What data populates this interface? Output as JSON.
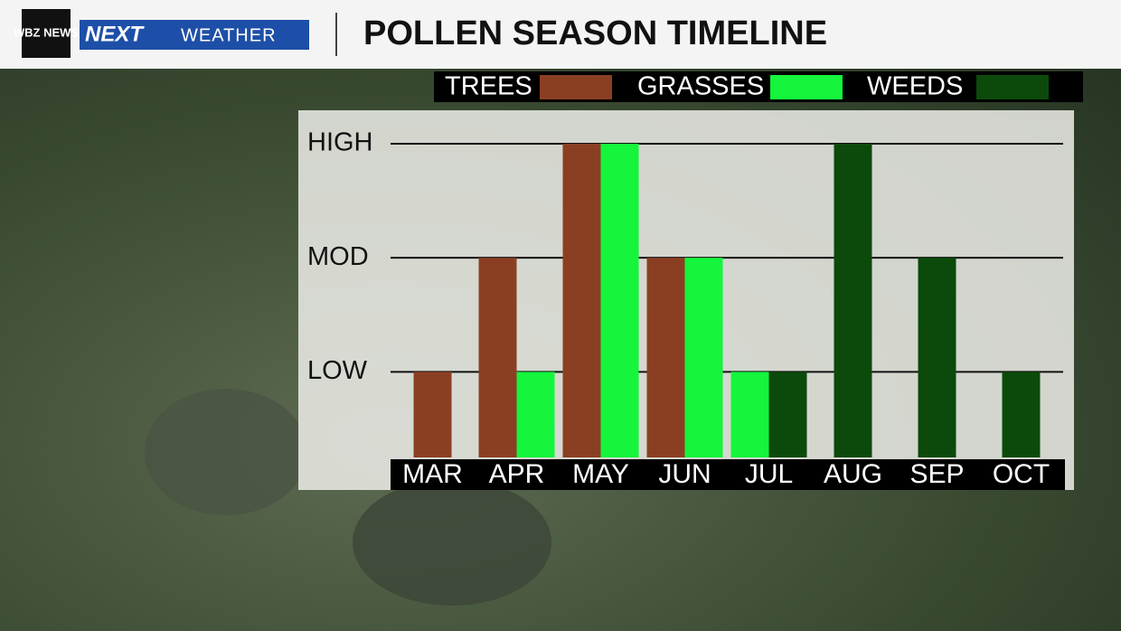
{
  "header": {
    "logo": "WBZ NEWS",
    "brand_next": "NEXT",
    "brand_weather": "WEATHER",
    "title": "POLLEN SEASON TIMELINE"
  },
  "chart_data": {
    "type": "bar",
    "categories": [
      "MAR",
      "APR",
      "MAY",
      "JUN",
      "JUL",
      "AUG",
      "SEP",
      "OCT"
    ],
    "series": [
      {
        "name": "TREES",
        "color": "#8b3f22",
        "values": [
          1,
          2,
          3,
          2,
          null,
          null,
          null,
          null
        ]
      },
      {
        "name": "GRASSES",
        "color": "#14f53c",
        "values": [
          null,
          1,
          3,
          2,
          1,
          null,
          null,
          null
        ]
      },
      {
        "name": "WEEDS",
        "color": "#0b4a0b",
        "values": [
          null,
          null,
          null,
          null,
          1,
          3,
          2,
          1
        ]
      }
    ],
    "ylim": [
      0.25,
      3
    ],
    "yticks": [
      {
        "value": 1,
        "label": "LOW"
      },
      {
        "value": 2,
        "label": "MOD"
      },
      {
        "value": 3,
        "label": "HIGH"
      }
    ],
    "grid": true
  }
}
